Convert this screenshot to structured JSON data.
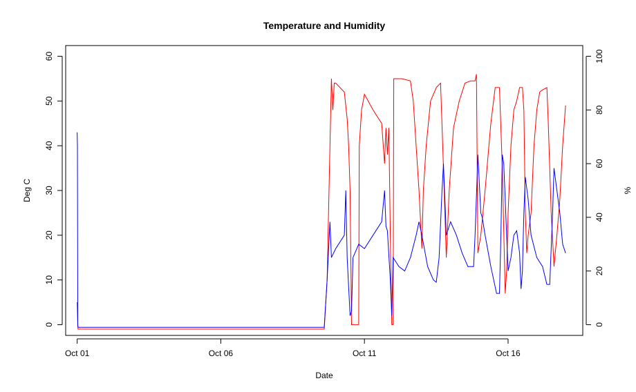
{
  "chart_data": {
    "type": "line",
    "title": "Temperature and Humidity",
    "xlabel": "Date",
    "ylabel_left": "Deg C",
    "ylabel_right": "%",
    "x_ticks": [
      {
        "day": 1,
        "label": "Oct 01"
      },
      {
        "day": 6,
        "label": "Oct 06"
      },
      {
        "day": 11,
        "label": "Oct 11"
      },
      {
        "day": 16,
        "label": "Oct 16"
      }
    ],
    "y_left_ticks": [
      0,
      10,
      20,
      30,
      40,
      50,
      60
    ],
    "y_right_ticks": [
      0,
      20,
      40,
      60,
      80,
      100
    ],
    "xlim": [
      0.6,
      18.6
    ],
    "ylim_left": [
      -2.4,
      62.4
    ],
    "ylim_right": [
      -4,
      104
    ],
    "grid": false,
    "series": [
      {
        "color": "#ff0000",
        "axis": "left",
        "points": [
          [
            1.0,
            5.0
          ],
          [
            1.02,
            -0.3
          ],
          [
            1.03,
            -1.0
          ],
          [
            5.0,
            -1.0
          ],
          [
            9.0,
            -1.0
          ],
          [
            9.6,
            -1.0
          ],
          [
            9.7,
            10
          ],
          [
            9.8,
            40
          ],
          [
            9.85,
            55
          ],
          [
            9.9,
            48
          ],
          [
            9.95,
            54
          ],
          [
            10.0,
            54
          ],
          [
            10.3,
            52
          ],
          [
            10.4,
            46
          ],
          [
            10.45,
            40
          ],
          [
            10.5,
            30
          ],
          [
            10.55,
            0
          ],
          [
            10.6,
            0
          ],
          [
            10.8,
            0
          ],
          [
            10.82,
            40
          ],
          [
            10.9,
            48
          ],
          [
            11.0,
            51.5
          ],
          [
            11.3,
            48
          ],
          [
            11.6,
            45
          ],
          [
            11.7,
            36
          ],
          [
            11.75,
            44
          ],
          [
            11.8,
            38
          ],
          [
            11.85,
            44
          ],
          [
            11.9,
            20
          ],
          [
            11.95,
            0
          ],
          [
            12.0,
            0
          ],
          [
            12.02,
            55
          ],
          [
            12.3,
            55
          ],
          [
            12.6,
            54.5
          ],
          [
            12.7,
            50
          ],
          [
            12.9,
            30
          ],
          [
            13.0,
            17
          ],
          [
            13.05,
            30
          ],
          [
            13.15,
            40
          ],
          [
            13.3,
            50
          ],
          [
            13.5,
            53
          ],
          [
            13.65,
            54
          ],
          [
            13.75,
            35
          ],
          [
            13.85,
            15
          ],
          [
            13.95,
            30
          ],
          [
            14.1,
            44
          ],
          [
            14.3,
            50
          ],
          [
            14.5,
            54
          ],
          [
            14.7,
            54.5
          ],
          [
            14.85,
            54.5
          ],
          [
            14.9,
            56
          ],
          [
            14.95,
            16
          ],
          [
            15.05,
            20
          ],
          [
            15.2,
            30
          ],
          [
            15.4,
            45
          ],
          [
            15.55,
            53
          ],
          [
            15.7,
            53
          ],
          [
            15.8,
            35
          ],
          [
            15.9,
            7
          ],
          [
            15.95,
            12
          ],
          [
            16.0,
            25
          ],
          [
            16.1,
            40
          ],
          [
            16.2,
            48
          ],
          [
            16.3,
            50
          ],
          [
            16.4,
            53
          ],
          [
            16.5,
            53
          ],
          [
            16.55,
            48
          ],
          [
            16.6,
            25
          ],
          [
            16.65,
            16
          ],
          [
            16.7,
            20
          ],
          [
            16.8,
            25
          ],
          [
            16.9,
            40
          ],
          [
            17.0,
            48
          ],
          [
            17.1,
            52
          ],
          [
            17.2,
            52.5
          ],
          [
            17.35,
            53
          ],
          [
            17.4,
            45
          ],
          [
            17.5,
            25
          ],
          [
            17.6,
            13
          ],
          [
            17.7,
            20
          ],
          [
            17.8,
            28
          ],
          [
            17.9,
            40
          ],
          [
            18.0,
            49
          ]
        ]
      },
      {
        "color": "#0000ff",
        "axis": "left",
        "points": [
          [
            1.0,
            43
          ],
          [
            1.01,
            40
          ],
          [
            1.02,
            0
          ],
          [
            1.03,
            -0.6
          ],
          [
            5.0,
            -0.6
          ],
          [
            9.0,
            -0.6
          ],
          [
            9.6,
            -0.6
          ],
          [
            9.7,
            10
          ],
          [
            9.8,
            23
          ],
          [
            9.85,
            15
          ],
          [
            10.0,
            17
          ],
          [
            10.2,
            19
          ],
          [
            10.3,
            20
          ],
          [
            10.35,
            30
          ],
          [
            10.4,
            15
          ],
          [
            10.5,
            2
          ],
          [
            10.55,
            3
          ],
          [
            10.6,
            15
          ],
          [
            10.8,
            18
          ],
          [
            11.0,
            17
          ],
          [
            11.3,
            20
          ],
          [
            11.6,
            23
          ],
          [
            11.7,
            30
          ],
          [
            11.75,
            22
          ],
          [
            11.8,
            21
          ],
          [
            11.9,
            10
          ],
          [
            11.95,
            2
          ],
          [
            12.0,
            15
          ],
          [
            12.2,
            13
          ],
          [
            12.4,
            12
          ],
          [
            12.6,
            15
          ],
          [
            12.8,
            20
          ],
          [
            12.9,
            23
          ],
          [
            13.0,
            20
          ],
          [
            13.2,
            13
          ],
          [
            13.4,
            10
          ],
          [
            13.5,
            9.5
          ],
          [
            13.6,
            15
          ],
          [
            13.7,
            30
          ],
          [
            13.75,
            36
          ],
          [
            13.85,
            20
          ],
          [
            14.0,
            23
          ],
          [
            14.2,
            20
          ],
          [
            14.4,
            16
          ],
          [
            14.6,
            13
          ],
          [
            14.8,
            13
          ],
          [
            14.85,
            20
          ],
          [
            14.95,
            38
          ],
          [
            15.05,
            25
          ],
          [
            15.1,
            24
          ],
          [
            15.2,
            20
          ],
          [
            15.4,
            13
          ],
          [
            15.6,
            7
          ],
          [
            15.7,
            7
          ],
          [
            15.75,
            20
          ],
          [
            15.8,
            38
          ],
          [
            15.85,
            36
          ],
          [
            15.9,
            28
          ],
          [
            16.0,
            12
          ],
          [
            16.1,
            15
          ],
          [
            16.2,
            20
          ],
          [
            16.3,
            21
          ],
          [
            16.4,
            16
          ],
          [
            16.45,
            8
          ],
          [
            16.5,
            12
          ],
          [
            16.55,
            25
          ],
          [
            16.6,
            33
          ],
          [
            16.7,
            28
          ],
          [
            16.8,
            20
          ],
          [
            17.0,
            15
          ],
          [
            17.2,
            13
          ],
          [
            17.35,
            9
          ],
          [
            17.45,
            9
          ],
          [
            17.55,
            25
          ],
          [
            17.6,
            35
          ],
          [
            17.7,
            30
          ],
          [
            17.8,
            25
          ],
          [
            17.9,
            18
          ],
          [
            18.0,
            16
          ]
        ]
      }
    ]
  }
}
